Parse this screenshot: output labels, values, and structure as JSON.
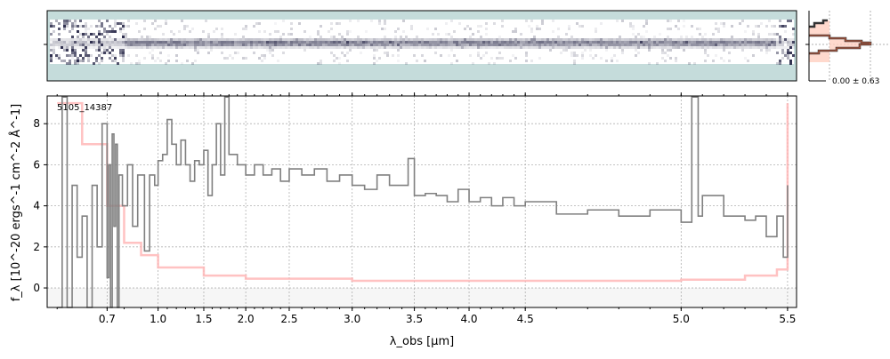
{
  "chart_data": {
    "type": "line",
    "object_label": "5105_14387",
    "xlabel": "λ_obs [μm]",
    "ylabel": "f_λ [10^-20 ergs^-1 cm^-2 Å^-1]",
    "ylim": [
      -0.95,
      9.35
    ],
    "xlim": [
      0.58,
      5.52
    ],
    "x_scale_knots": [
      [
        0.58,
        0
      ],
      [
        0.7,
        0.08
      ],
      [
        1.0,
        0.148
      ],
      [
        1.5,
        0.209
      ],
      [
        2.0,
        0.265
      ],
      [
        2.5,
        0.323
      ],
      [
        3.0,
        0.407
      ],
      [
        3.5,
        0.49
      ],
      [
        4.0,
        0.563
      ],
      [
        4.5,
        0.638
      ],
      [
        5.0,
        0.846
      ],
      [
        5.5,
        0.988
      ],
      [
        5.52,
        1
      ]
    ],
    "xticks": [
      "0.7",
      "1.0",
      "1.5",
      "2.0",
      "2.5",
      "3.0",
      "3.5",
      "4.0",
      "4.5",
      "5.0",
      "5.5"
    ],
    "xtick_values": [
      0.7,
      1.0,
      1.5,
      2.0,
      2.5,
      3.0,
      3.5,
      4.0,
      4.5,
      5.0,
      5.5
    ],
    "yticks": [
      "0",
      "2",
      "4",
      "6",
      "8"
    ],
    "ytick_values": [
      0,
      2,
      4,
      6,
      8
    ],
    "grid": true,
    "colors": {
      "flux": "#808080",
      "error": "#ffb3b3",
      "twod_bg": "#c5dcdb",
      "trace": "#2a2a4a"
    },
    "series": [
      {
        "name": "flux",
        "points": [
          [
            0.6,
            -1
          ],
          [
            0.61,
            9.3
          ],
          [
            0.62,
            -1
          ],
          [
            0.63,
            5
          ],
          [
            0.64,
            1.5
          ],
          [
            0.65,
            3.5
          ],
          [
            0.66,
            -1
          ],
          [
            0.67,
            5
          ],
          [
            0.68,
            2
          ],
          [
            0.69,
            8
          ],
          [
            0.7,
            0.5
          ],
          [
            0.71,
            6
          ],
          [
            0.72,
            -1
          ],
          [
            0.73,
            7.5
          ],
          [
            0.74,
            3
          ],
          [
            0.75,
            7
          ],
          [
            0.76,
            -1
          ],
          [
            0.77,
            5.5
          ],
          [
            0.79,
            4
          ],
          [
            0.82,
            6
          ],
          [
            0.85,
            3
          ],
          [
            0.88,
            5.5
          ],
          [
            0.92,
            1.8
          ],
          [
            0.95,
            5.5
          ],
          [
            0.98,
            5
          ],
          [
            1.0,
            6.2
          ],
          [
            1.05,
            6.5
          ],
          [
            1.1,
            8.2
          ],
          [
            1.15,
            7
          ],
          [
            1.2,
            6
          ],
          [
            1.25,
            7.2
          ],
          [
            1.3,
            6
          ],
          [
            1.35,
            5.2
          ],
          [
            1.4,
            6.2
          ],
          [
            1.45,
            6
          ],
          [
            1.5,
            6.7
          ],
          [
            1.55,
            4.5
          ],
          [
            1.6,
            6
          ],
          [
            1.65,
            8
          ],
          [
            1.7,
            5.5
          ],
          [
            1.75,
            9.3
          ],
          [
            1.8,
            6.5
          ],
          [
            1.9,
            6
          ],
          [
            2.0,
            5.5
          ],
          [
            2.1,
            6
          ],
          [
            2.2,
            5.5
          ],
          [
            2.3,
            5.8
          ],
          [
            2.4,
            5.2
          ],
          [
            2.5,
            5.8
          ],
          [
            2.6,
            5.5
          ],
          [
            2.7,
            5.8
          ],
          [
            2.8,
            5.2
          ],
          [
            2.9,
            5.5
          ],
          [
            3.0,
            5
          ],
          [
            3.1,
            4.8
          ],
          [
            3.2,
            5.5
          ],
          [
            3.3,
            5
          ],
          [
            3.4,
            5
          ],
          [
            3.45,
            6.3
          ],
          [
            3.5,
            4.5
          ],
          [
            3.6,
            4.6
          ],
          [
            3.7,
            4.5
          ],
          [
            3.8,
            4.2
          ],
          [
            3.9,
            4.8
          ],
          [
            4.0,
            4.2
          ],
          [
            4.1,
            4.4
          ],
          [
            4.2,
            4
          ],
          [
            4.3,
            4.4
          ],
          [
            4.4,
            4
          ],
          [
            4.5,
            4.2
          ],
          [
            4.6,
            3.6
          ],
          [
            4.7,
            3.8
          ],
          [
            4.8,
            3.5
          ],
          [
            4.9,
            3.8
          ],
          [
            5.0,
            3.2
          ],
          [
            5.05,
            9.3
          ],
          [
            5.08,
            3.5
          ],
          [
            5.1,
            4.5
          ],
          [
            5.2,
            3.5
          ],
          [
            5.3,
            3.3
          ],
          [
            5.35,
            3.5
          ],
          [
            5.4,
            2.5
          ],
          [
            5.45,
            3.5
          ],
          [
            5.48,
            1.5
          ],
          [
            5.5,
            5
          ]
        ]
      },
      {
        "name": "error",
        "points": [
          [
            0.6,
            9
          ],
          [
            0.65,
            7
          ],
          [
            0.7,
            4
          ],
          [
            0.8,
            2.2
          ],
          [
            0.9,
            1.6
          ],
          [
            1.0,
            1.0
          ],
          [
            1.5,
            0.6
          ],
          [
            2.0,
            0.45
          ],
          [
            3.0,
            0.35
          ],
          [
            4.0,
            0.35
          ],
          [
            4.5,
            0.35
          ],
          [
            5.0,
            0.4
          ],
          [
            5.3,
            0.6
          ],
          [
            5.45,
            0.9
          ],
          [
            5.5,
            9
          ]
        ]
      }
    ],
    "histogram": {
      "label": "0.00 ± 0.63"
    }
  }
}
